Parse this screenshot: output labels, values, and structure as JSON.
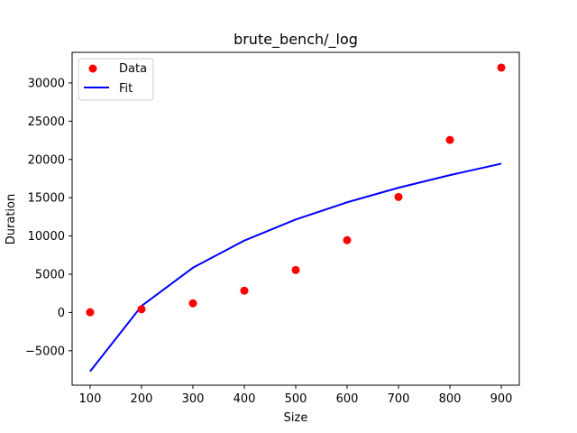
{
  "chart_data": {
    "type": "scatter",
    "title": "brute_bench/_log",
    "xlabel": "Size",
    "ylabel": "Duration",
    "xlim": [
      65,
      935
    ],
    "ylim": [
      -9500,
      34000
    ],
    "xticks": [
      100,
      200,
      300,
      400,
      500,
      600,
      700,
      800,
      900
    ],
    "yticks": [
      -5000,
      0,
      5000,
      10000,
      15000,
      20000,
      25000,
      30000
    ],
    "grid": false,
    "legend_position": "top-left",
    "series": [
      {
        "name": "Data",
        "kind": "scatter",
        "color": "#ff0000",
        "x": [
          100,
          200,
          300,
          400,
          500,
          600,
          700,
          800,
          900
        ],
        "y": [
          30,
          420,
          1200,
          2850,
          5550,
          9450,
          15100,
          22550,
          32000
        ]
      },
      {
        "name": "Fit",
        "kind": "line",
        "color": "#0000ff",
        "x": [
          100,
          200,
          300,
          400,
          500,
          600,
          700,
          800,
          900
        ],
        "y": [
          -7700,
          850,
          5850,
          9400,
          12150,
          14400,
          16300,
          17950,
          19450
        ]
      }
    ]
  }
}
